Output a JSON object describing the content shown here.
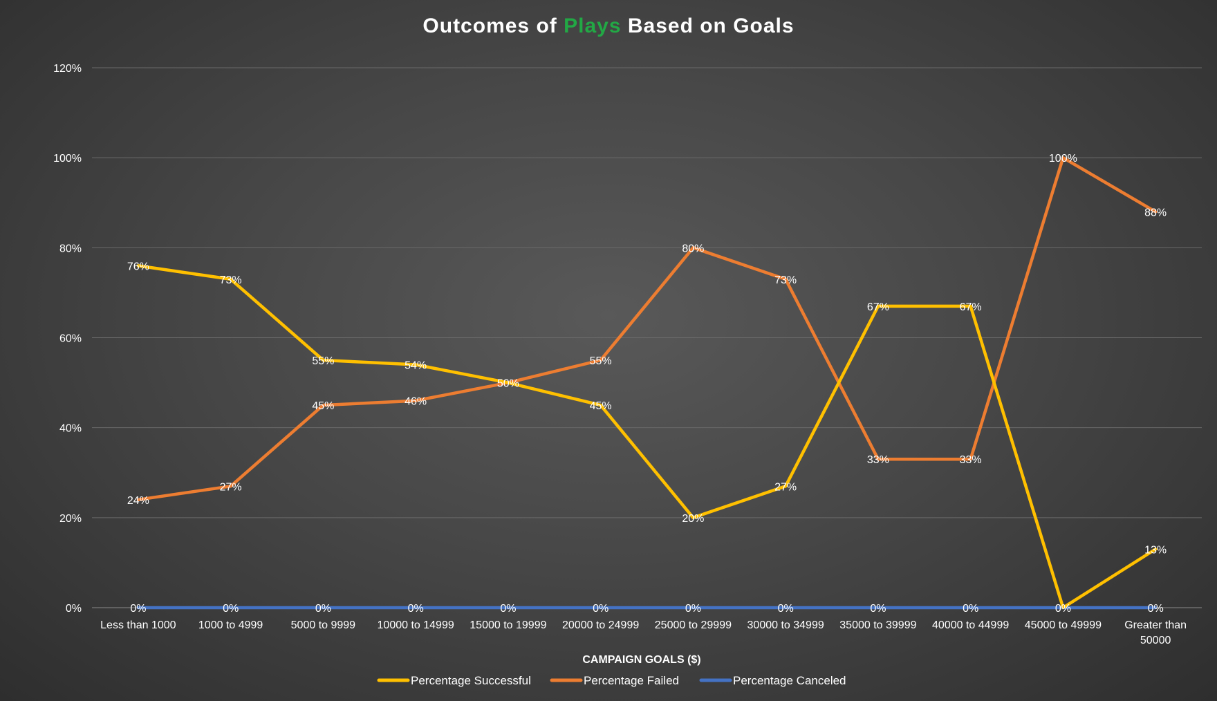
{
  "chart_data": {
    "type": "line",
    "title": {
      "prefix": "Outcomes of ",
      "highlight": "Plays",
      "suffix": " Based on Goals",
      "highlight_color": "#22a845"
    },
    "xlabel": "CAMPAIGN GOALS ($)",
    "ylabel": "",
    "ylim": [
      0,
      120
    ],
    "yticks": [
      0,
      20,
      40,
      60,
      80,
      100,
      120
    ],
    "ytick_labels": [
      "0%",
      "20%",
      "40%",
      "60%",
      "80%",
      "100%",
      "120%"
    ],
    "grid": true,
    "legend_position": "bottom",
    "categories": [
      [
        "Less than 1000"
      ],
      [
        "1000 to 4999"
      ],
      [
        "5000 to 9999"
      ],
      [
        "10000 to 14999"
      ],
      [
        "15000 to 19999"
      ],
      [
        "20000 to 24999"
      ],
      [
        "25000 to 29999"
      ],
      [
        "30000 to 34999"
      ],
      [
        "35000 to 39999"
      ],
      [
        "40000 to 44999"
      ],
      [
        "45000 to 49999"
      ],
      [
        "Greater than",
        "50000"
      ]
    ],
    "series": [
      {
        "name": "Percentage Successful",
        "color": "#ffc000",
        "values": [
          76,
          73,
          55,
          54,
          50,
          45,
          20,
          27,
          67,
          67,
          0,
          13
        ],
        "labels": [
          "76%",
          "73%",
          "55%",
          "54%",
          "50%",
          "45%",
          "20%",
          "27%",
          "67%",
          "67%",
          "0%",
          "13%"
        ]
      },
      {
        "name": "Percentage Failed",
        "color": "#ed7d31",
        "values": [
          24,
          27,
          45,
          46,
          50,
          55,
          80,
          73,
          33,
          33,
          100,
          88
        ],
        "labels": [
          "24%",
          "27%",
          "45%",
          "46%",
          "",
          "55%",
          "80%",
          "73%",
          "33%",
          "33%",
          "100%",
          "88%"
        ]
      },
      {
        "name": "Percentage Canceled",
        "color": "#4472c4",
        "values": [
          0,
          0,
          0,
          0,
          0,
          0,
          0,
          0,
          0,
          0,
          0,
          0
        ],
        "labels": [
          "0%",
          "0%",
          "0%",
          "0%",
          "0%",
          "0%",
          "0%",
          "0%",
          "0%",
          "0%",
          "",
          "0%"
        ]
      }
    ]
  }
}
